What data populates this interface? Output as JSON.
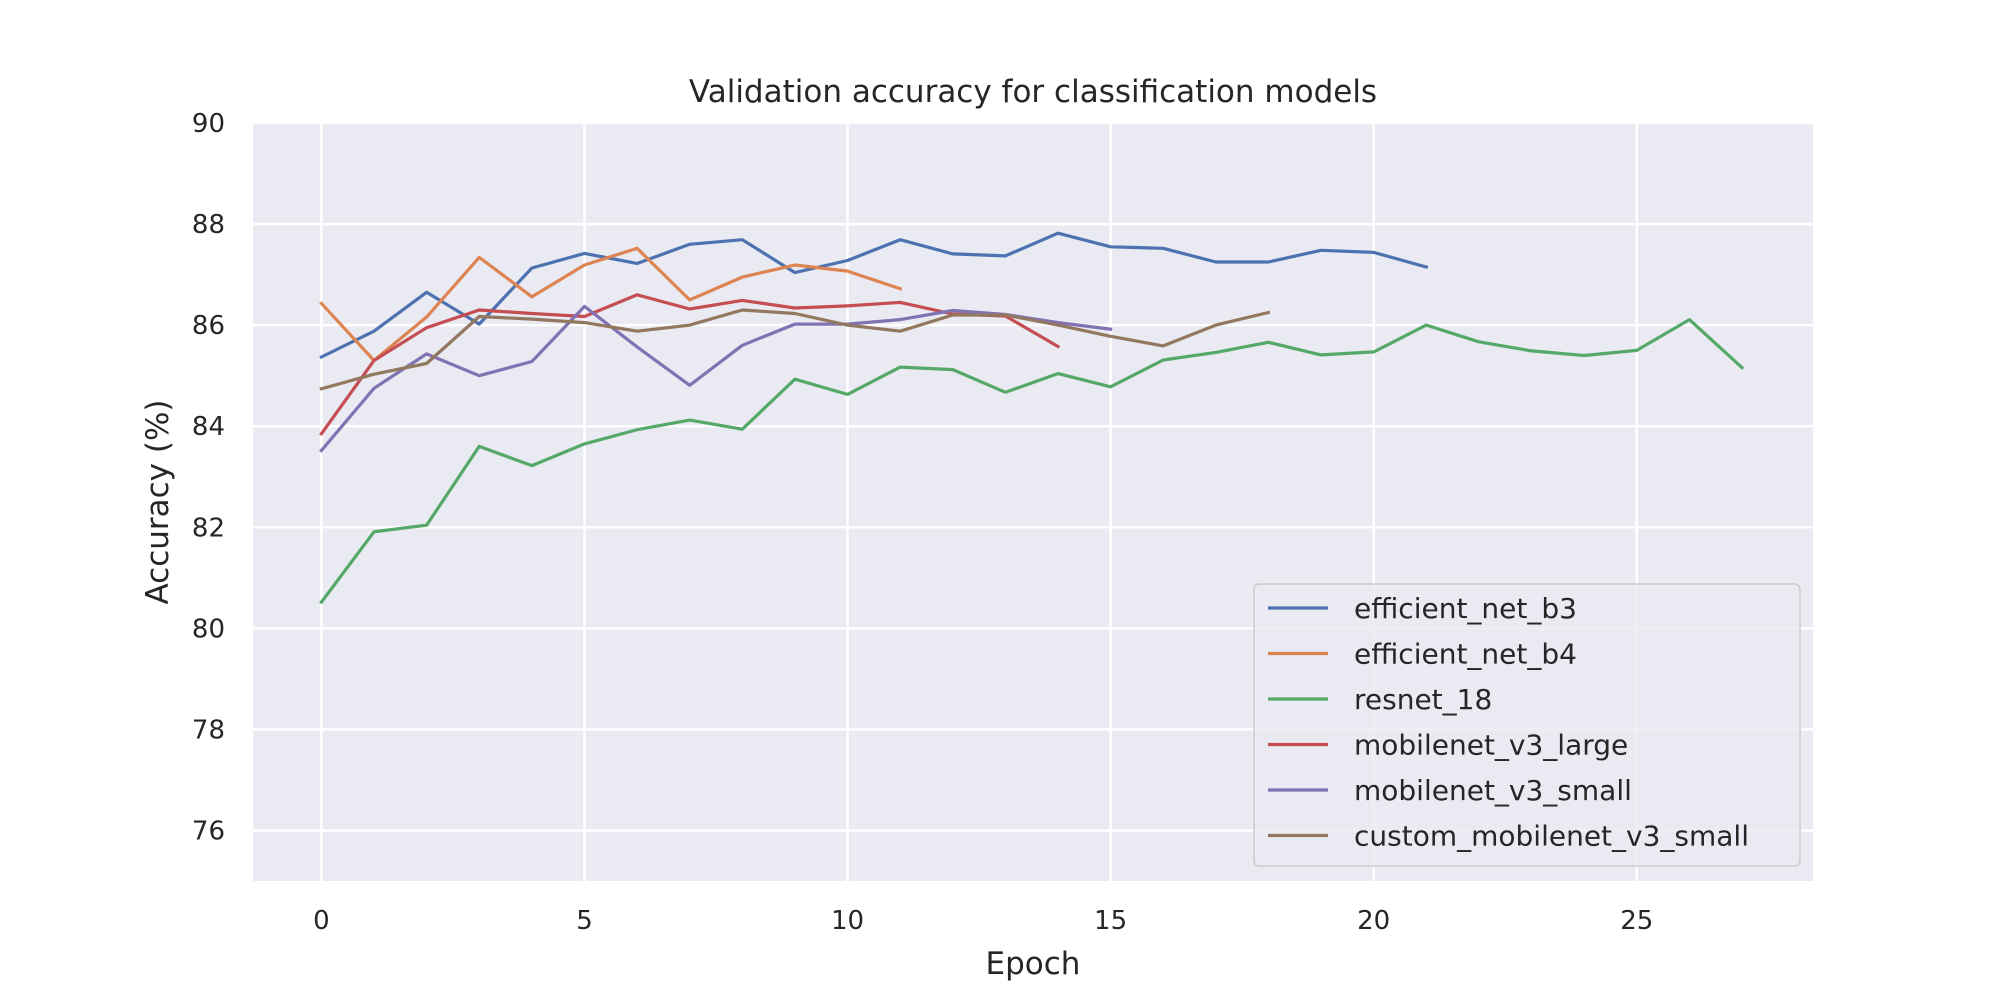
{
  "chart_data": {
    "type": "line",
    "title": "Validation accuracy for classification models",
    "xlabel": "Epoch",
    "ylabel": "Accuracy (%)",
    "xlim": [
      -1.3,
      28.35
    ],
    "ylim": [
      75,
      90
    ],
    "xticks": [
      0,
      5,
      10,
      15,
      20,
      25
    ],
    "yticks": [
      76,
      78,
      80,
      82,
      84,
      86,
      88,
      90
    ],
    "grid": true,
    "legend_position": "lower-right",
    "series": [
      {
        "name": "efficient_net_b3",
        "color": "#4c72b0",
        "x": [
          0,
          1,
          2,
          3,
          4,
          5,
          6,
          7,
          8,
          9,
          10,
          11,
          12,
          13,
          14,
          15,
          16,
          17,
          18,
          19,
          20,
          21
        ],
        "values": [
          85.37,
          85.88,
          86.65,
          86.02,
          87.13,
          87.42,
          87.22,
          87.6,
          87.69,
          87.04,
          87.28,
          87.69,
          87.41,
          87.37,
          87.82,
          87.55,
          87.52,
          87.25,
          87.25,
          87.48,
          87.44,
          87.15
        ]
      },
      {
        "name": "efficient_net_b4",
        "color": "#dd8452",
        "x": [
          0,
          1,
          2,
          3,
          4,
          5,
          6,
          7,
          8,
          9,
          10,
          11
        ],
        "values": [
          86.43,
          85.3,
          86.16,
          87.34,
          86.56,
          87.19,
          87.52,
          86.5,
          86.95,
          87.19,
          87.07,
          86.72
        ]
      },
      {
        "name": "resnet_18",
        "color": "#55a868",
        "x": [
          0,
          1,
          2,
          3,
          4,
          5,
          6,
          7,
          8,
          9,
          10,
          11,
          12,
          13,
          14,
          15,
          16,
          17,
          18,
          19,
          20,
          21,
          22,
          23,
          24,
          25,
          26,
          27
        ],
        "values": [
          80.52,
          81.91,
          82.04,
          83.6,
          83.22,
          83.65,
          83.93,
          84.12,
          83.94,
          84.93,
          84.63,
          85.17,
          85.12,
          84.67,
          85.04,
          84.78,
          85.31,
          85.46,
          85.66,
          85.41,
          85.47,
          86.0,
          85.67,
          85.49,
          85.4,
          85.5,
          86.11,
          85.16
        ]
      },
      {
        "name": "mobilenet_v3_large",
        "color": "#c44e52",
        "x": [
          0,
          1,
          2,
          3,
          4,
          5,
          6,
          7,
          8,
          9,
          10,
          11,
          12,
          13,
          14
        ],
        "values": [
          83.85,
          85.3,
          85.95,
          86.3,
          86.23,
          86.17,
          86.6,
          86.32,
          86.49,
          86.34,
          86.38,
          86.45,
          86.22,
          86.18,
          85.58
        ]
      },
      {
        "name": "mobilenet_v3_small",
        "color": "#8172b3",
        "x": [
          0,
          1,
          2,
          3,
          4,
          5,
          6,
          7,
          8,
          9,
          10,
          11,
          12,
          13,
          14,
          15
        ],
        "values": [
          83.52,
          84.75,
          85.43,
          85.0,
          85.28,
          86.37,
          85.57,
          84.81,
          85.6,
          86.02,
          86.02,
          86.11,
          86.29,
          86.21,
          86.05,
          85.92
        ]
      },
      {
        "name": "custom_mobilenet_v3_small",
        "color": "#937860",
        "x": [
          0,
          1,
          2,
          3,
          4,
          5,
          6,
          7,
          8,
          9,
          10,
          11,
          12,
          13,
          14,
          15,
          16,
          17,
          18
        ],
        "values": [
          84.74,
          85.03,
          85.24,
          86.17,
          86.12,
          86.05,
          85.88,
          86.0,
          86.3,
          86.23,
          86.0,
          85.88,
          86.2,
          86.2,
          86.0,
          85.78,
          85.59,
          86.0,
          86.25
        ]
      }
    ]
  }
}
